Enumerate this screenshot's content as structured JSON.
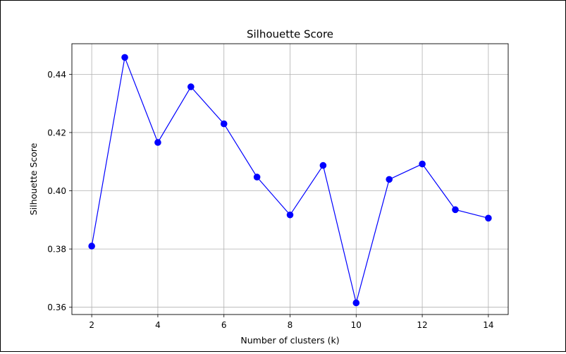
{
  "chart_data": {
    "type": "line",
    "title": "Silhouette Score",
    "xlabel": "Number of clusters (k)",
    "ylabel": "Silhouette Score",
    "xlim": [
      1.4,
      14.6
    ],
    "ylim": [
      0.3575,
      0.4505
    ],
    "xticks": [
      "2",
      "4",
      "6",
      "8",
      "10",
      "12",
      "14"
    ],
    "yticks": [
      "0.36",
      "0.38",
      "0.40",
      "0.42",
      "0.44"
    ],
    "grid": true,
    "series": [
      {
        "color": "#0000ff",
        "marker": "circle",
        "x": [
          2,
          3,
          4,
          5,
          6,
          7,
          8,
          9,
          10,
          11,
          12,
          13,
          14
        ],
        "y": [
          0.381,
          0.4458,
          0.4166,
          0.4357,
          0.423,
          0.4047,
          0.3917,
          0.4087,
          0.3615,
          0.4039,
          0.4092,
          0.3935,
          0.3906
        ]
      }
    ]
  }
}
